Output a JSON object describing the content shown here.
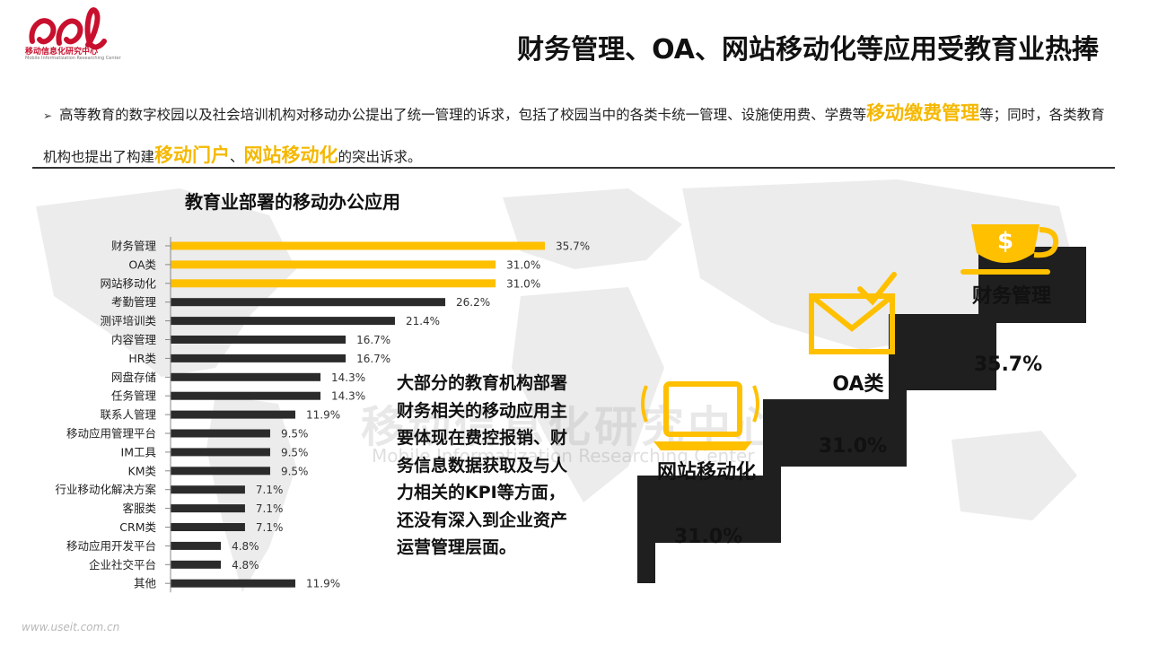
{
  "logo": {
    "name_cn": "移动信息化研究中心",
    "name_en": "Mobile Informatization Researching Center"
  },
  "title": "财务管理、OA、网站移动化等应用受教育业热捧",
  "bullet": {
    "part1": "高等教育的数字校园以及社会培训机构对移动办公提出了统一管理的诉求，包括了校园当中的各类卡统一管理、设施使用费、学费等",
    "hl1": "移动缴费管理",
    "part2": "等；同时，各类教育机构也提出了构建",
    "hl2": "移动门户",
    "sep": "、",
    "hl3": "网站移动化",
    "part3": "的突出诉求。"
  },
  "chart_data": {
    "type": "bar",
    "orientation": "horizontal",
    "title": "教育业部署的移动办公应用",
    "categories": [
      "财务管理",
      "OA类",
      "网站移动化",
      "考勤管理",
      "测评培训类",
      "内容管理",
      "HR类",
      "网盘存储",
      "任务管理",
      "联系人管理",
      "移动应用管理平台",
      "IM工具",
      "KM类",
      "行业移动化解决方案",
      "客服类",
      "CRM类",
      "移动应用开发平台",
      "企业社交平台",
      "其他"
    ],
    "values": [
      35.7,
      31.0,
      31.0,
      26.2,
      21.4,
      16.7,
      16.7,
      14.3,
      14.3,
      11.9,
      9.5,
      9.5,
      9.5,
      7.1,
      7.1,
      7.1,
      4.8,
      4.8,
      11.9
    ],
    "value_labels": [
      "35.7%",
      "31.0%",
      "31.0%",
      "26.2%",
      "21.4%",
      "16.7%",
      "16.7%",
      "14.3%",
      "14.3%",
      "11.9%",
      "9.5%",
      "9.5%",
      "9.5%",
      "7.1%",
      "7.1%",
      "7.1%",
      "4.8%",
      "4.8%",
      "11.9%"
    ],
    "highlight_count": 3,
    "xlim": [
      0,
      40
    ],
    "colors": {
      "highlight": "#ffc000",
      "default": "#2b2b2b"
    }
  },
  "callout": [
    "大部分的教育机构部署",
    "财务相关的移动应用主",
    "要体现在费控报销、财",
    "务信息数据获取及与人",
    "力相关的KPI等方面，",
    "还没有深入到企业资产",
    "运营管理层面。"
  ],
  "podium": [
    {
      "label": "网站移动化",
      "value": "31.0%",
      "icon": "laptop-icon"
    },
    {
      "label": "OA类",
      "value": "31.0%",
      "icon": "envelope-check-icon"
    },
    {
      "label": "财务管理",
      "value": "35.7%",
      "icon": "dollar-cup-icon"
    }
  ],
  "watermark": {
    "cn": "移动信息化研究中心",
    "en": "Mobile Informatization Researching Center"
  },
  "footer": "www.useit.com.cn",
  "colors": {
    "accent": "#ffc000",
    "dark": "#2b2b2b",
    "brand": "#c8102e"
  }
}
